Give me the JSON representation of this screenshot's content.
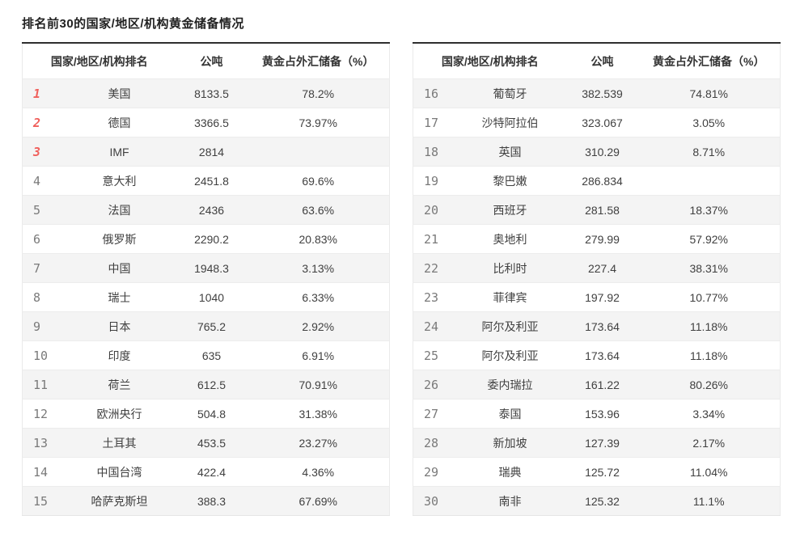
{
  "page": {
    "title": "排名前30的国家/地区/机构黄金储备情况"
  },
  "columns": {
    "rank_country": "国家/地区/机构排名",
    "tons": "公吨",
    "percent": "黄金占外汇储备（%）"
  },
  "colors": {
    "accent_red": "#f0605c",
    "rank_gray": "#7a7a7a",
    "row_alt_bg": "#f4f4f4",
    "top_border": "#2e2e2e"
  },
  "chart_data": {
    "type": "table",
    "title": "排名前30的国家/地区/机构黄金储备情况",
    "columns": [
      "排名",
      "国家/地区/机构",
      "公吨",
      "黄金占外汇储备（%）"
    ]
  },
  "tables": [
    {
      "rows": [
        {
          "rank": 1,
          "name": "美国",
          "tons": "8133.5",
          "percent": "78.2%",
          "highlight": true
        },
        {
          "rank": 2,
          "name": "德国",
          "tons": "3366.5",
          "percent": "73.97%",
          "highlight": true
        },
        {
          "rank": 3,
          "name": "IMF",
          "tons": "2814",
          "percent": "",
          "highlight": true
        },
        {
          "rank": 4,
          "name": "意大利",
          "tons": "2451.8",
          "percent": "69.6%",
          "highlight": false
        },
        {
          "rank": 5,
          "name": "法国",
          "tons": "2436",
          "percent": "63.6%",
          "highlight": false
        },
        {
          "rank": 6,
          "name": "俄罗斯",
          "tons": "2290.2",
          "percent": "20.83%",
          "highlight": false
        },
        {
          "rank": 7,
          "name": "中国",
          "tons": "1948.3",
          "percent": "3.13%",
          "highlight": false
        },
        {
          "rank": 8,
          "name": "瑞士",
          "tons": "1040",
          "percent": "6.33%",
          "highlight": false
        },
        {
          "rank": 9,
          "name": "日本",
          "tons": "765.2",
          "percent": "2.92%",
          "highlight": false
        },
        {
          "rank": 10,
          "name": "印度",
          "tons": "635",
          "percent": "6.91%",
          "highlight": false
        },
        {
          "rank": 11,
          "name": "荷兰",
          "tons": "612.5",
          "percent": "70.91%",
          "highlight": false
        },
        {
          "rank": 12,
          "name": "欧洲央行",
          "tons": "504.8",
          "percent": "31.38%",
          "highlight": false
        },
        {
          "rank": 13,
          "name": "土耳其",
          "tons": "453.5",
          "percent": "23.27%",
          "highlight": false
        },
        {
          "rank": 14,
          "name": "中国台湾",
          "tons": "422.4",
          "percent": "4.36%",
          "highlight": false
        },
        {
          "rank": 15,
          "name": "哈萨克斯坦",
          "tons": "388.3",
          "percent": "67.69%",
          "highlight": false
        }
      ]
    },
    {
      "rows": [
        {
          "rank": 16,
          "name": "葡萄牙",
          "tons": "382.539",
          "percent": "74.81%",
          "highlight": false
        },
        {
          "rank": 17,
          "name": "沙特阿拉伯",
          "tons": "323.067",
          "percent": "3.05%",
          "highlight": false
        },
        {
          "rank": 18,
          "name": "英国",
          "tons": "310.29",
          "percent": "8.71%",
          "highlight": false
        },
        {
          "rank": 19,
          "name": "黎巴嫩",
          "tons": "286.834",
          "percent": "",
          "highlight": false
        },
        {
          "rank": 20,
          "name": "西班牙",
          "tons": "281.58",
          "percent": "18.37%",
          "highlight": false
        },
        {
          "rank": 21,
          "name": "奥地利",
          "tons": "279.99",
          "percent": "57.92%",
          "highlight": false
        },
        {
          "rank": 22,
          "name": "比利时",
          "tons": "227.4",
          "percent": "38.31%",
          "highlight": false
        },
        {
          "rank": 23,
          "name": "菲律宾",
          "tons": "197.92",
          "percent": "10.77%",
          "highlight": false
        },
        {
          "rank": 24,
          "name": "阿尔及利亚",
          "tons": "173.64",
          "percent": "11.18%",
          "highlight": false
        },
        {
          "rank": 25,
          "name": "阿尔及利亚",
          "tons": "173.64",
          "percent": "11.18%",
          "highlight": false
        },
        {
          "rank": 26,
          "name": "委内瑞拉",
          "tons": "161.22",
          "percent": "80.26%",
          "highlight": false
        },
        {
          "rank": 27,
          "name": "泰国",
          "tons": "153.96",
          "percent": "3.34%",
          "highlight": false
        },
        {
          "rank": 28,
          "name": "新加坡",
          "tons": "127.39",
          "percent": "2.17%",
          "highlight": false
        },
        {
          "rank": 29,
          "name": "瑞典",
          "tons": "125.72",
          "percent": "11.04%",
          "highlight": false
        },
        {
          "rank": 30,
          "name": "南非",
          "tons": "125.32",
          "percent": "11.1%",
          "highlight": false
        }
      ]
    }
  ]
}
